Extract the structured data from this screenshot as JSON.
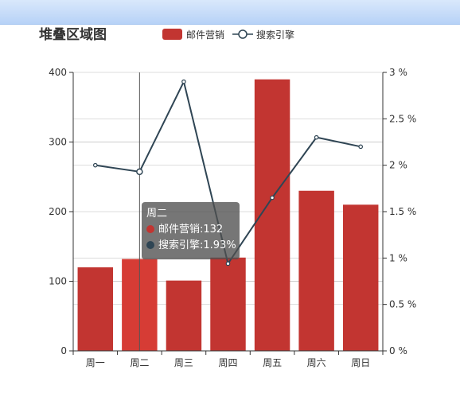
{
  "chart_data": {
    "type": "bar",
    "title": "堆叠区域图",
    "categories": [
      "周一",
      "周二",
      "周三",
      "周四",
      "周五",
      "周六",
      "周日"
    ],
    "series": [
      {
        "name": "邮件营销",
        "type": "bar",
        "axis": "left",
        "values": [
          120,
          132,
          101,
          134,
          390,
          230,
          210
        ],
        "color": "#c23531",
        "highlight_color": "#d63c35"
      },
      {
        "name": "搜索引擎",
        "type": "line",
        "axis": "right",
        "values": [
          2.0,
          1.93,
          2.9,
          0.94,
          1.65,
          2.3,
          2.2
        ],
        "color": "#2f4554"
      }
    ],
    "y_left": {
      "ylim": [
        0,
        400
      ],
      "ticks": [
        0,
        100,
        200,
        300,
        400
      ]
    },
    "y_right": {
      "ylim": [
        0,
        3
      ],
      "ticks": [
        0,
        0.5,
        1,
        1.5,
        2,
        2.5,
        3
      ],
      "tick_labels": [
        "0 %",
        "0.5 %",
        "1 %",
        "1.5 %",
        "2 %",
        "2.5 %",
        "3 %"
      ]
    },
    "legend_position": "top-center",
    "grid": true,
    "highlighted_category": "周二",
    "tooltip": {
      "title": "周二",
      "rows": [
        {
          "text": "邮件营销:132",
          "color": "#c23531"
        },
        {
          "text": "搜索引擎:1.93%",
          "color": "#2f4554"
        }
      ]
    }
  }
}
